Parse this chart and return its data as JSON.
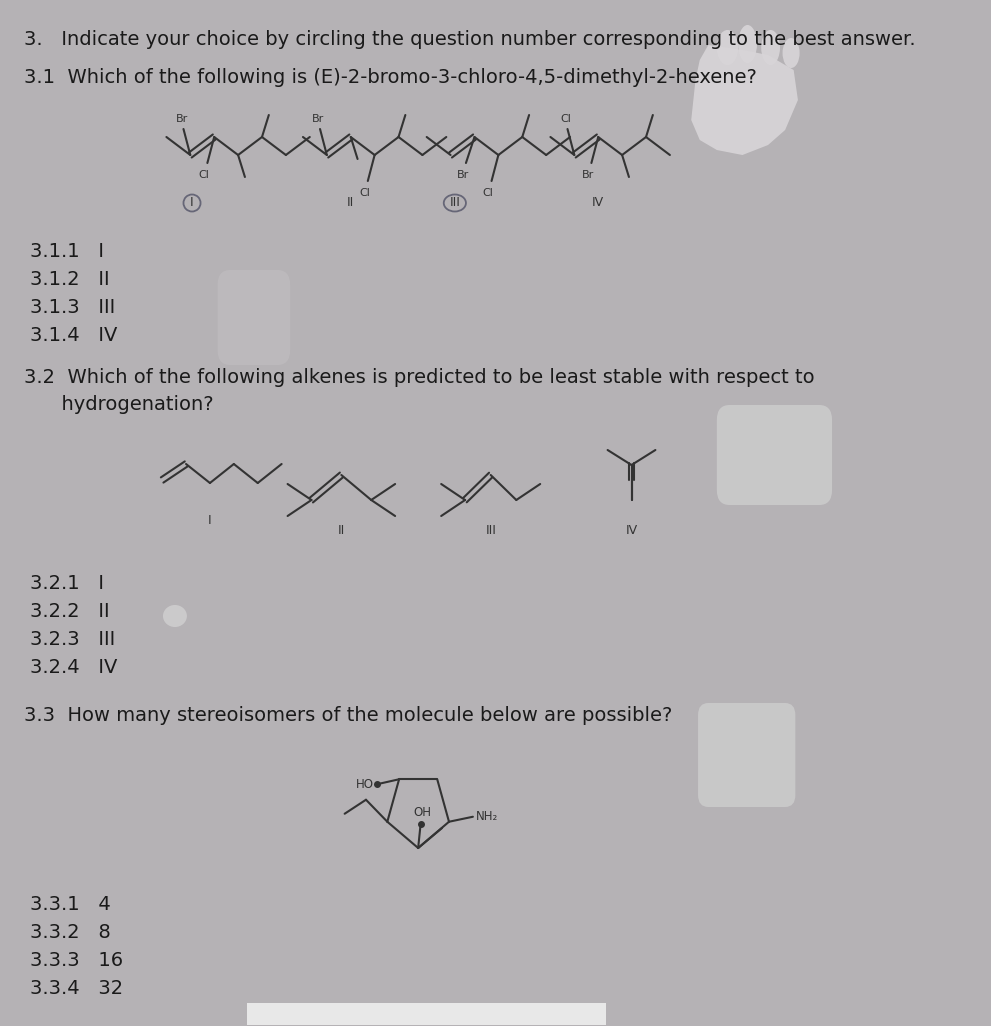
{
  "bg_color": "#b5b2b5",
  "text_color": "#1a1a1a",
  "title_line1": "3.   Indicate your choice by circling the question number corresponding to the best answer.",
  "q31_text": "3.1  Which of the following is (E)-2-bromo-3-chloro-4,5-dimethyl-2-hexene?",
  "q31_answers": [
    "3.1.1   I",
    "3.1.2   II",
    "3.1.3   III",
    "3.1.4   IV"
  ],
  "q32_line1": "3.2  Which of the following alkenes is predicted to be least stable with respect to",
  "q32_line2": "      hydrogenation?",
  "q32_answers": [
    "3.2.1   I",
    "3.2.2   II",
    "3.2.3   III",
    "3.2.4   IV"
  ],
  "q33_text": "3.3  How many stereoisomers of the molecule below are possible?",
  "q33_answers": [
    "3.3.1   4",
    "3.3.2   8",
    "3.3.3   16",
    "3.3.4   32"
  ],
  "font_size": 14,
  "struct_color": "#333333"
}
